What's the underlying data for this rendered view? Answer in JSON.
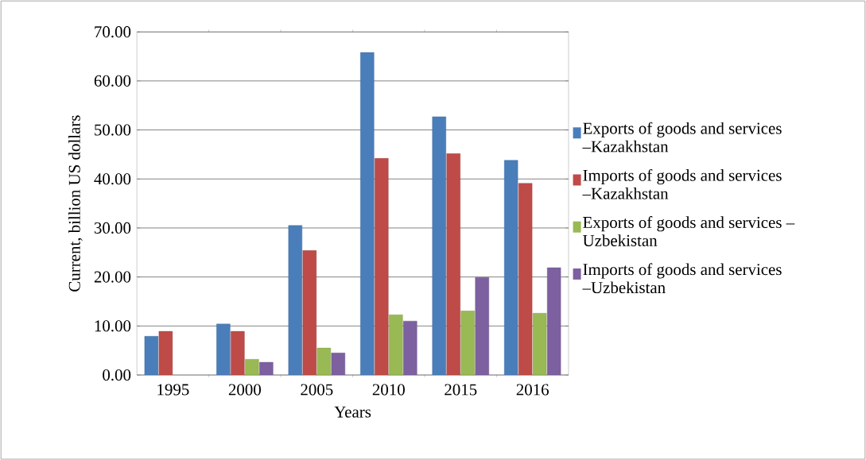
{
  "chart_data": {
    "type": "bar",
    "xlabel": "Years",
    "ylabel": "Current, billion US dollars",
    "categories": [
      "1995",
      "2000",
      "2005",
      "2010",
      "2015",
      "2016"
    ],
    "series": [
      {
        "name": "Exports of goods and services –Kazakhstan",
        "color": "#4a7ebb",
        "values": [
          7.9,
          10.4,
          30.5,
          65.8,
          52.7,
          43.8
        ]
      },
      {
        "name": "Imports of goods and services –Kazakhstan",
        "color": "#be4b48",
        "values": [
          8.9,
          8.9,
          25.4,
          44.2,
          45.2,
          39.1
        ]
      },
      {
        "name": "Exports of goods and services – Uzbekistan",
        "color": "#98b954",
        "values": [
          null,
          3.2,
          5.5,
          12.3,
          13.1,
          12.6
        ]
      },
      {
        "name": "Imports of goods and services –Uzbekistan",
        "color": "#7d60a0",
        "values": [
          null,
          2.6,
          4.5,
          11.0,
          19.9,
          21.9
        ]
      }
    ],
    "ylim": [
      0,
      70
    ],
    "yticks": [
      {
        "value": 0,
        "label": "0.00"
      },
      {
        "value": 10,
        "label": "10.00"
      },
      {
        "value": 20,
        "label": "20.00"
      },
      {
        "value": 30,
        "label": "30.00"
      },
      {
        "value": 40,
        "label": "40.00"
      },
      {
        "value": 50,
        "label": "50.00"
      },
      {
        "value": 60,
        "label": "60.00"
      },
      {
        "value": 70,
        "label": "70.00"
      }
    ],
    "grid": "y",
    "legend": "right"
  }
}
